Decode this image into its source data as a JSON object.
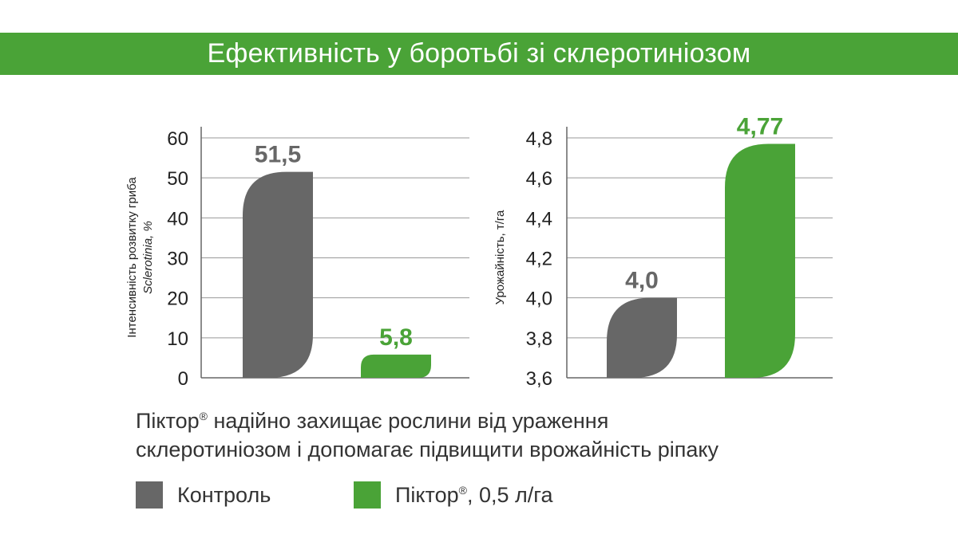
{
  "header": {
    "title": "Ефективність у боротьбі зі склеротиніозом"
  },
  "caption": {
    "line1_brand": "Піктор",
    "line1_mark": "®",
    "line1_rest": " надійно захищає рослини від ураження",
    "line2": "склеротиніозом і допомагає підвищити врожайність ріпаку"
  },
  "legend": [
    {
      "label": "Контроль",
      "mark": "",
      "suffix": "",
      "color": "#676767"
    },
    {
      "label": "Піктор",
      "mark": "®",
      "suffix": ", 0,5 л/га",
      "color": "#4aa337"
    }
  ],
  "colors": {
    "control": "#676767",
    "pictor": "#4aa337",
    "grid": "#999999",
    "axis": "#666666"
  },
  "chart_data": [
    {
      "type": "bar",
      "ylabel_line1": "Інтенсивність розвитку гриба",
      "ylabel_line2": "Sclerotinia, %",
      "ylim": [
        0,
        60
      ],
      "yticks": [
        0,
        10,
        20,
        30,
        40,
        50,
        60
      ],
      "ytick_labels": [
        "0",
        "10",
        "20",
        "30",
        "40",
        "50",
        "60"
      ],
      "grid": true,
      "series": [
        {
          "values": [
            51.5
          ],
          "color": "#676767",
          "value_label": "51,5"
        },
        {
          "values": [
            5.8
          ],
          "color": "#4aa337",
          "value_label": "5,8"
        }
      ]
    },
    {
      "type": "bar",
      "ylabel_line1": "Урожайність, т/га",
      "ylim": [
        3.6,
        4.8
      ],
      "yticks": [
        3.6,
        3.8,
        4.0,
        4.2,
        4.4,
        4.6,
        4.8
      ],
      "ytick_labels": [
        "3,6",
        "3,8",
        "4,0",
        "4,2",
        "4,4",
        "4,6",
        "4,8"
      ],
      "grid": true,
      "series": [
        {
          "values": [
            4.0
          ],
          "color": "#676767",
          "value_label": "4,0"
        },
        {
          "values": [
            4.77
          ],
          "color": "#4aa337",
          "value_label": "4,77"
        }
      ]
    }
  ]
}
